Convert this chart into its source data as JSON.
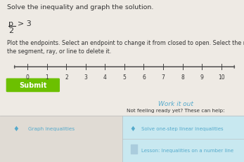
{
  "title": "Solve the inequality and graph the solution.",
  "frac_num": "p",
  "frac_den": "2",
  "gt_text": "> 3",
  "instruction": "Plot the endpoints. Select an endpoint to change it from closed to open. Select the middle of\nthe segment, ray, or line to delete it.",
  "tick_labels": [
    "0",
    "1",
    "2",
    "3",
    "4",
    "5",
    "6",
    "7",
    "8",
    "9",
    "10"
  ],
  "tick_values": [
    0,
    1,
    2,
    3,
    4,
    5,
    6,
    7,
    8,
    9,
    10
  ],
  "submit_label": "Submit",
  "submit_bg": "#6cc000",
  "submit_text_color": "#ffffff",
  "work_it_out": "Work it out",
  "not_ready": "Not feeling ready yet? These can help:",
  "link1": "Graph inequalities",
  "link2": "Solve one-step linear inequalities",
  "link3": "Lesson: Inequalities on a number line",
  "bg_color": "#eeeae4",
  "bg_top_color": "#eeeae4",
  "number_line_color": "#444444",
  "text_color": "#333333",
  "work_color": "#55aacc",
  "bottom_left_bg": "#e0dbd4",
  "bottom_right_bg": "#c8e8f0",
  "divider_color": "#bbbbbb",
  "icon_color": "#55aacc",
  "link_color": "#55aacc"
}
